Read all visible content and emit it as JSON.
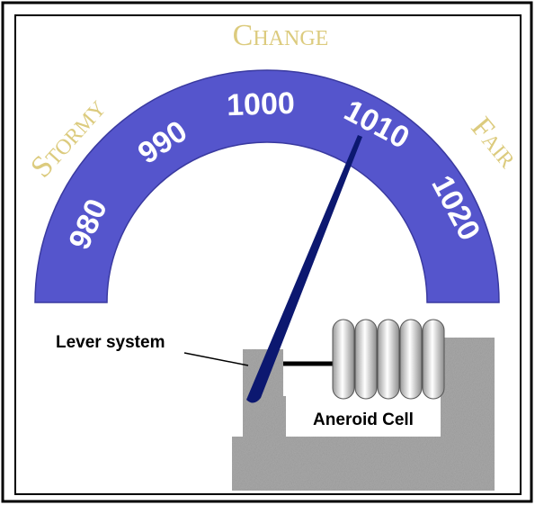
{
  "scale": {
    "labels": [
      "980",
      "990",
      "1000",
      "1010",
      "1020"
    ]
  },
  "zones": {
    "left": "Stormy",
    "top": "Change",
    "right": "Fair"
  },
  "parts": {
    "lever": "Lever system",
    "cell": "Aneroid Cell"
  }
}
